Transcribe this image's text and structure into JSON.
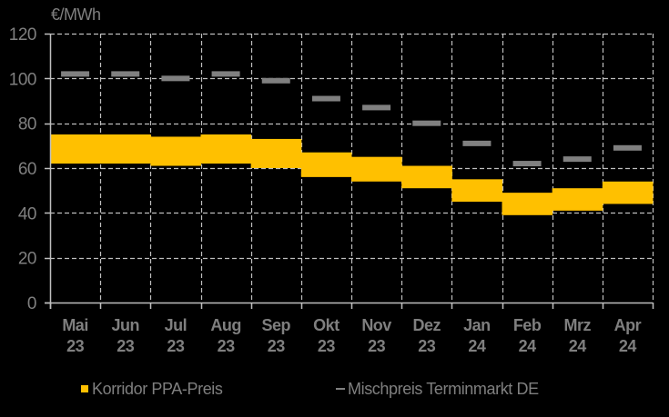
{
  "chart_data": {
    "type": "bar",
    "subtype": "floating-range-bar-with-marker",
    "title": "",
    "ylabel": "€/MWh",
    "xlabel": "",
    "ylim": [
      0,
      120
    ],
    "yticks": [
      0,
      20,
      40,
      60,
      80,
      100,
      120
    ],
    "grid": true,
    "legend_position": "bottom",
    "categories": [
      "Mai 23",
      "Jun 23",
      "Jul 23",
      "Aug 23",
      "Sep 23",
      "Okt 23",
      "Nov 23",
      "Dez 23",
      "Jan 24",
      "Feb 24",
      "Mrz 24",
      "Apr 24"
    ],
    "category_lines": [
      [
        "Mai",
        "23"
      ],
      [
        "Jun",
        "23"
      ],
      [
        "Jul",
        "23"
      ],
      [
        "Aug",
        "23"
      ],
      [
        "Sep",
        "23"
      ],
      [
        "Okt",
        "23"
      ],
      [
        "Nov",
        "23"
      ],
      [
        "Dez",
        "23"
      ],
      [
        "Jan",
        "24"
      ],
      [
        "Feb",
        "24"
      ],
      [
        "Mrz",
        "24"
      ],
      [
        "Apr",
        "24"
      ]
    ],
    "series": [
      {
        "name": "Korridor PPA-Preis",
        "kind": "range",
        "color": "#FFC000",
        "low": [
          62,
          62,
          61,
          62,
          60,
          56,
          54,
          51,
          45,
          39,
          41,
          44
        ],
        "high": [
          75,
          75,
          74,
          75,
          73,
          67,
          65,
          61,
          55,
          49,
          51,
          54
        ]
      },
      {
        "name": "Mischpreis Terminmarkt DE",
        "kind": "marker",
        "color": "#808080",
        "values": [
          102,
          102,
          100,
          102,
          99,
          91,
          87,
          80,
          71,
          62,
          64,
          69
        ]
      }
    ]
  },
  "axis": {
    "unit_label": "€/MWh"
  },
  "legend": {
    "items": [
      {
        "label": "Korridor PPA-Preis",
        "color": "#FFC000",
        "symbol": "square"
      },
      {
        "label": "Mischpreis Terminmarkt DE",
        "color": "#808080",
        "symbol": "dash"
      }
    ]
  },
  "colors": {
    "background": "#000000",
    "text": "#7f7f7f",
    "grid": "#bfbfbf",
    "axis": "#bfbfbf"
  }
}
